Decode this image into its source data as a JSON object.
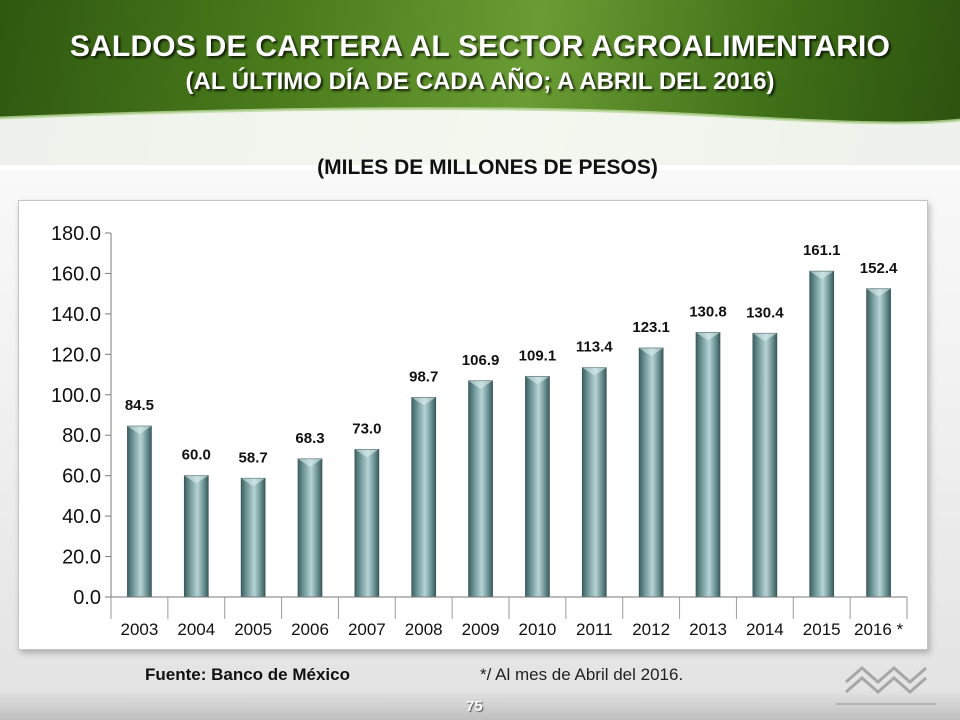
{
  "header": {
    "title": "SALDOS DE CARTERA AL SECTOR AGROALIMENTARIO",
    "subtitle": "(AL ÚLTIMO DÍA DE CADA AÑO; A  ABRIL DEL 2016)"
  },
  "unit_label": "(MILES DE MILLONES DE PESOS)",
  "chart_data": {
    "type": "bar",
    "categories": [
      "2003",
      "2004",
      "2005",
      "2006",
      "2007",
      "2008",
      "2009",
      "2010",
      "2011",
      "2012",
      "2013",
      "2014",
      "2015",
      "2016 *"
    ],
    "values": [
      84.5,
      60.0,
      58.7,
      68.3,
      73.0,
      98.7,
      106.9,
      109.1,
      113.4,
      123.1,
      130.8,
      130.4,
      161.1,
      152.4
    ],
    "value_labels": [
      "84.5",
      "60.0",
      "58.7",
      "68.3",
      "73.0",
      "98.7",
      "106.9",
      "109.1",
      "113.4",
      "123.1",
      "130.8",
      "130.4",
      "161.1",
      "152.4"
    ],
    "ylim": [
      0,
      180
    ],
    "yticks": [
      "0.0",
      "20.0",
      "40.0",
      "60.0",
      "80.0",
      "100.0",
      "120.0",
      "140.0",
      "160.0",
      "180.0"
    ],
    "grid": false,
    "bar_color": "#5f8a8c"
  },
  "footer": {
    "source": "Fuente: Banco de México",
    "note": "*/ Al mes de Abril del 2016.",
    "page_number": "75",
    "logo_icon": "cna-logo-icon"
  }
}
